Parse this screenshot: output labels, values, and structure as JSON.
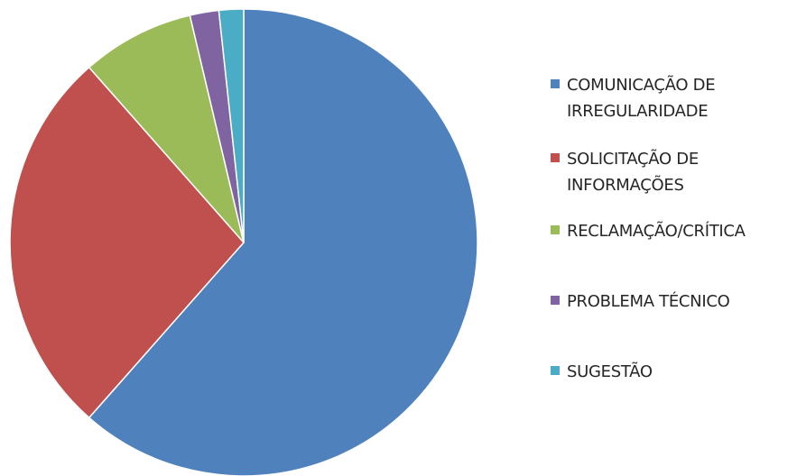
{
  "chart_data": {
    "type": "pie",
    "start_angle_deg": 0,
    "direction": "clockwise",
    "legend_position": "right",
    "slices": [
      {
        "label": "COMUNICAÇÃO DE IRREGULARIDADE",
        "value": 61.5,
        "color": "#4f81bd"
      },
      {
        "label": "SOLICITAÇÃO DE INFORMAÇÕES",
        "value": 27.0,
        "color": "#c0504d"
      },
      {
        "label": "RECLAMAÇÃO/CRÍTICA",
        "value": 7.8,
        "color": "#9bbb59"
      },
      {
        "label": "PROBLEMA TÉCNICO",
        "value": 2.0,
        "color": "#8064a2"
      },
      {
        "label": "SUGESTÃO",
        "value": 1.7,
        "color": "#4bacc6"
      }
    ]
  }
}
